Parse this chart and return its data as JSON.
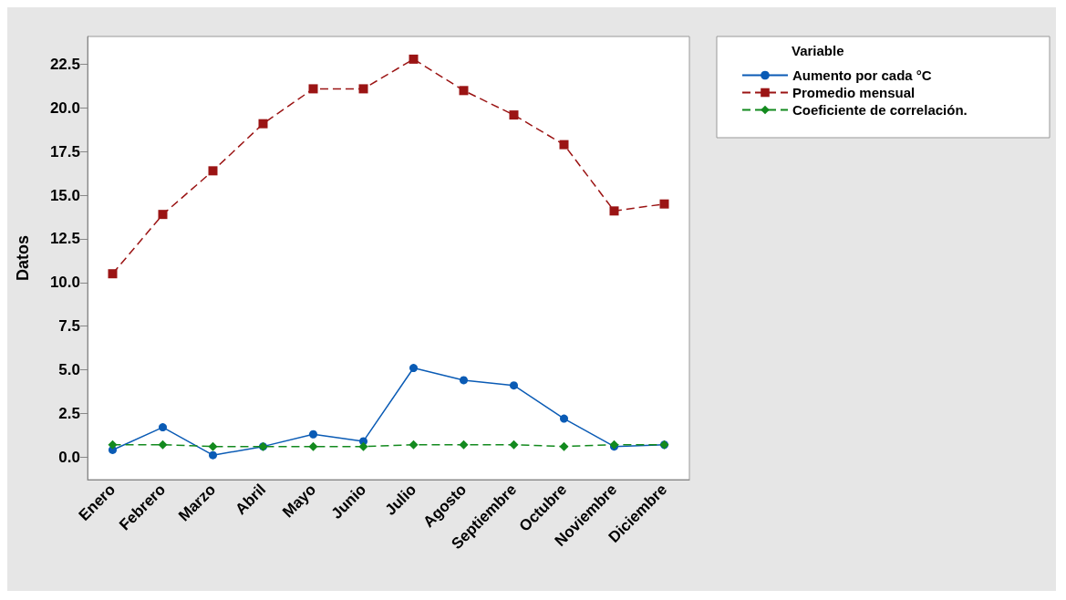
{
  "chart_data": {
    "type": "line",
    "ylabel": "Datos",
    "legend_title": "Variable",
    "legend": "top right",
    "categories": [
      "Enero",
      "Febrero",
      "Marzo",
      "Abril",
      "Mayo",
      "Junio",
      "Julio",
      "Agosto",
      "Septiembre",
      "Octubre",
      "Noviembre",
      "Diciembre"
    ],
    "series": [
      {
        "name": "Aumento por cada °C",
        "color": "#0a5bb5",
        "marker": "circle",
        "line_style": "solid",
        "values": [
          0.4,
          1.7,
          0.1,
          0.6,
          1.3,
          0.9,
          5.1,
          4.4,
          4.1,
          2.2,
          0.6,
          0.7
        ]
      },
      {
        "name": "Promedio mensual",
        "color": "#9b1414",
        "marker": "square",
        "line_style": "dashed",
        "values": [
          10.5,
          13.9,
          16.4,
          19.1,
          21.1,
          21.1,
          22.8,
          21.0,
          19.6,
          17.9,
          14.1,
          14.5
        ]
      },
      {
        "name": "Coeficiente de correlación.",
        "color": "#138a1e",
        "marker": "diamond",
        "line_style": "dashed",
        "values": [
          0.7,
          0.7,
          0.6,
          0.6,
          0.6,
          0.6,
          0.7,
          0.7,
          0.7,
          0.6,
          0.7,
          0.7
        ]
      }
    ],
    "ylim": [
      -1.3,
      24.1
    ],
    "yticks": [
      {
        "value": 0,
        "label": "0.0"
      },
      2.5,
      {
        "value": 5,
        "label": "5.0"
      },
      7.5,
      {
        "value": 10,
        "label": "10.0"
      },
      12.5,
      {
        "value": 15,
        "label": "15.0"
      },
      17.5,
      {
        "value": 20,
        "label": "20.0"
      },
      22.5
    ]
  }
}
